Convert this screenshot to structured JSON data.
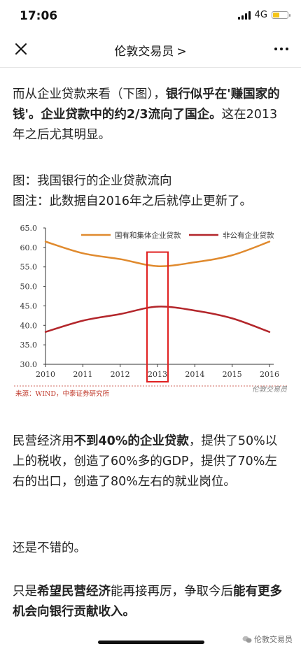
{
  "status": {
    "time": "17:06",
    "network": "4G",
    "battery_level": 0.45,
    "battery_color": "#f5c518"
  },
  "nav": {
    "title": "伦敦交易员",
    "chevron": ">"
  },
  "article": {
    "p1": [
      {
        "t": "而从企业贷款来看（下图），",
        "b": false
      },
      {
        "t": "银行似乎在'赚国家的钱'。企业贷款中的约2/3流向了国企。",
        "b": true
      },
      {
        "t": "这在2013年之后尤其明显。",
        "b": false
      }
    ],
    "caption1": "图：我国银行的企业贷款流向",
    "caption2": "图注：此数据自2016年之后就停止更新了。",
    "p2": [
      {
        "t": "民营经济用",
        "b": false
      },
      {
        "t": "不到40%的企业贷款",
        "b": true
      },
      {
        "t": "，提供了50%以上的税收，创造了60%多的GDP，提供了70%左右的出口，创造了80%左右的就业岗位。",
        "b": false
      }
    ],
    "p3": "还是不错的。",
    "p4": [
      {
        "t": "只是",
        "b": false
      },
      {
        "t": "希望民营经济",
        "b": true
      },
      {
        "t": "能再接再厉，争取今后",
        "b": false
      },
      {
        "t": "能有更多机会向银行贡献收入。",
        "b": true
      }
    ]
  },
  "chart_data": {
    "type": "line",
    "x": [
      2010,
      2011,
      2012,
      2013,
      2014,
      2015,
      2016
    ],
    "series": [
      {
        "name": "国有和集体企业贷款",
        "color": "#e08a2e",
        "values": [
          61.5,
          58.5,
          57.0,
          55.2,
          56.2,
          58.0,
          61.5
        ]
      },
      {
        "name": "非公有企业贷款",
        "color": "#b3262b",
        "values": [
          38.3,
          41.2,
          42.9,
          44.8,
          43.8,
          41.8,
          38.3
        ]
      }
    ],
    "ylim": [
      30,
      65
    ],
    "yticks": [
      "30.0",
      "35.0",
      "40.0",
      "45.0",
      "50.0",
      "55.0",
      "60.0",
      "65.0"
    ],
    "xticks": [
      "2010",
      "2011",
      "2012",
      "2013",
      "2014",
      "2015",
      "2016"
    ],
    "highlight_x": 2013,
    "highlight_color": "#e02020",
    "legend_position": "top",
    "source": "来源：WIND，中泰证券研究所",
    "watermark": "伦敦交易员",
    "grid": false
  },
  "footer": {
    "watermark": "伦敦交易员"
  }
}
